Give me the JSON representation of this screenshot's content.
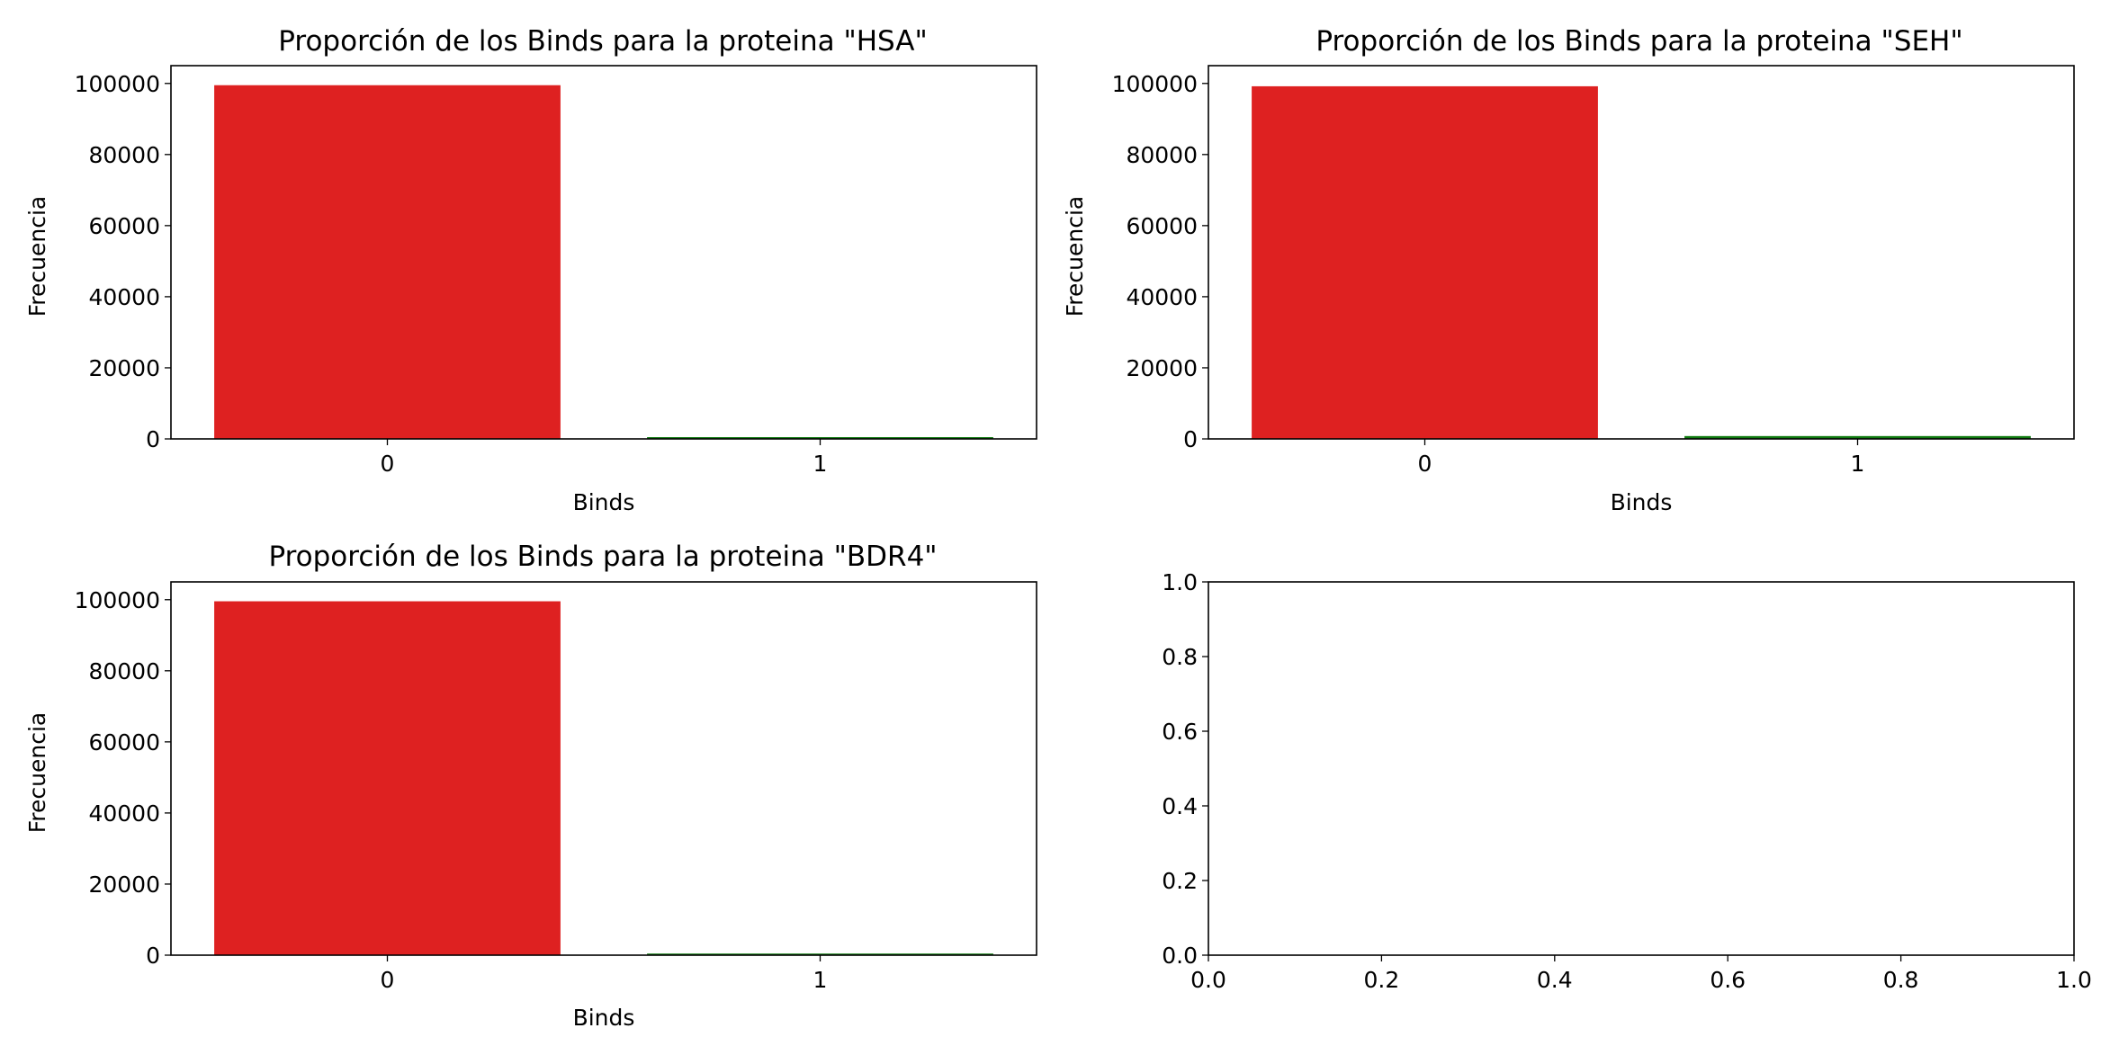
{
  "chart_data": [
    {
      "type": "bar",
      "title": "Proporción de los Binds para la proteina \"HSA\"",
      "xlabel": "Binds",
      "ylabel": "Frecuencia",
      "categories": [
        "0",
        "1"
      ],
      "values": [
        99500,
        500
      ],
      "colors": [
        "#de2121",
        "#0f7a0f"
      ],
      "ylim": [
        0,
        105000
      ],
      "yticks": [
        0,
        20000,
        40000,
        60000,
        80000,
        100000
      ],
      "grid": false
    },
    {
      "type": "bar",
      "title": "Proporción de los Binds para la proteina \"SEH\"",
      "xlabel": "Binds",
      "ylabel": "Frecuencia",
      "categories": [
        "0",
        "1"
      ],
      "values": [
        99200,
        800
      ],
      "colors": [
        "#de2121",
        "#0f7a0f"
      ],
      "ylim": [
        0,
        105000
      ],
      "yticks": [
        0,
        20000,
        40000,
        60000,
        80000,
        100000
      ],
      "grid": false
    },
    {
      "type": "bar",
      "title": "Proporción de los Binds para la proteina \"BDR4\"",
      "xlabel": "Binds",
      "ylabel": "Frecuencia",
      "categories": [
        "0",
        "1"
      ],
      "values": [
        99550,
        450
      ],
      "colors": [
        "#de2121",
        "#0f7a0f"
      ],
      "ylim": [
        0,
        105000
      ],
      "yticks": [
        0,
        20000,
        40000,
        60000,
        80000,
        100000
      ],
      "grid": false
    },
    {
      "type": "empty",
      "title": "",
      "xlabel": "",
      "ylabel": "",
      "xlim": [
        0,
        1
      ],
      "ylim": [
        0,
        1
      ],
      "xticks": [
        "0.0",
        "0.2",
        "0.4",
        "0.6",
        "0.8",
        "1.0"
      ],
      "yticks": [
        "0.0",
        "0.2",
        "0.4",
        "0.6",
        "0.8",
        "1.0"
      ],
      "grid": false
    }
  ]
}
